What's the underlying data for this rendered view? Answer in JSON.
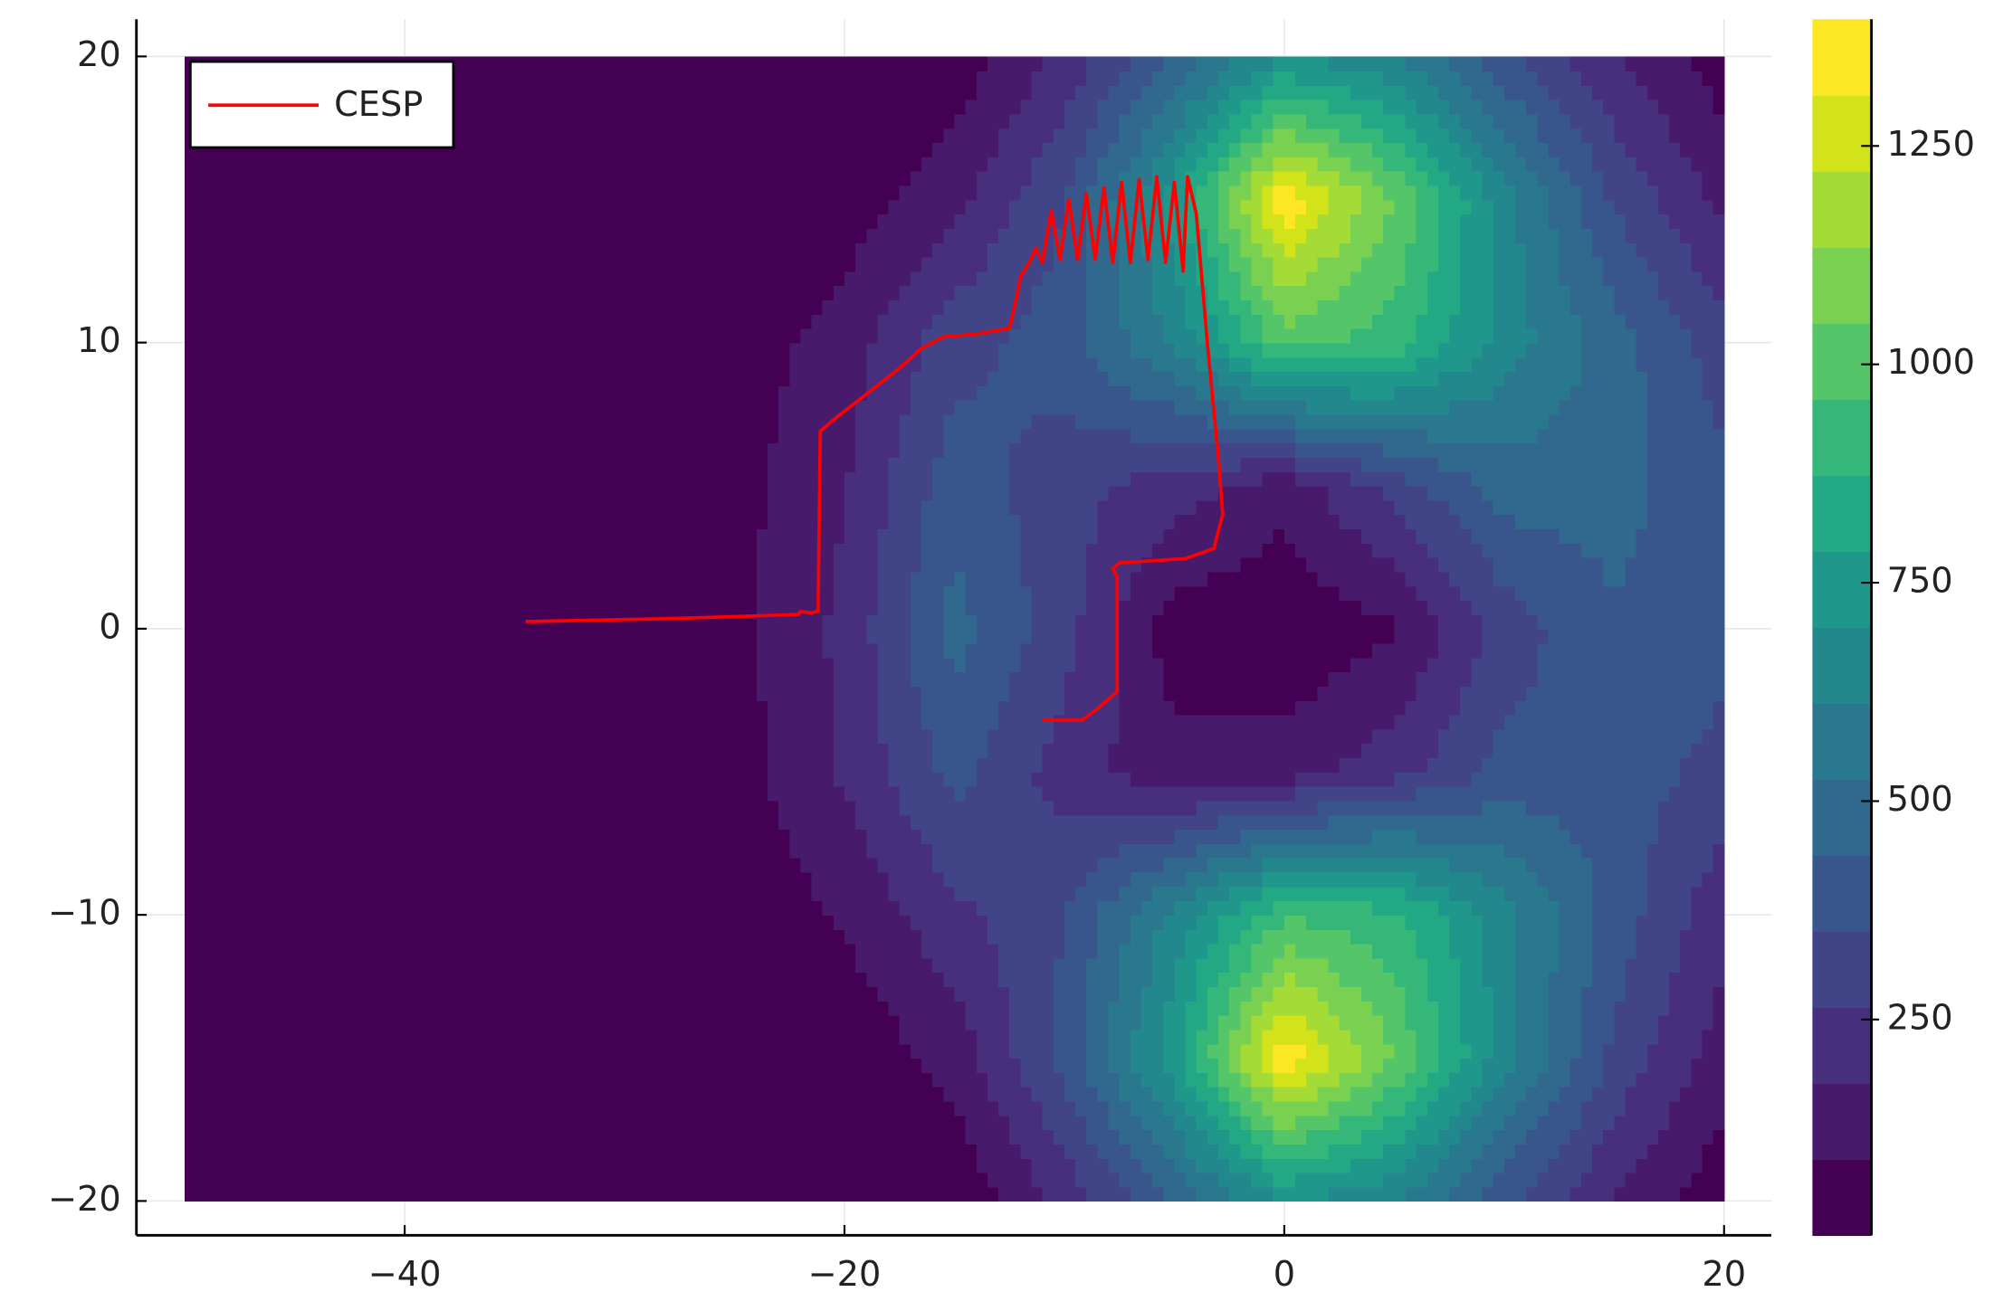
{
  "chart_data": {
    "type": "contour",
    "xlim": [
      -52.2,
      22.15
    ],
    "ylim": [
      -21.2,
      21.3
    ],
    "xticks": [
      {
        "value": -40,
        "label": "−40"
      },
      {
        "value": -20,
        "label": "−20"
      },
      0,
      20
    ],
    "yticks": [
      {
        "value": -20,
        "label": "−20"
      },
      {
        "value": -10,
        "label": "−10"
      },
      0,
      10,
      20
    ],
    "grid": true,
    "legend": "top-left",
    "contour": {
      "x": [
        -50,
        -45,
        -40,
        -35,
        -30,
        -25,
        -20,
        -15,
        -10,
        -5,
        0,
        5,
        10,
        15,
        20
      ],
      "y": [
        -20,
        -15,
        -10,
        -5,
        0,
        5,
        10,
        15,
        20
      ],
      "z": [
        [
          5,
          5,
          5,
          5,
          5,
          10,
          15,
          20,
          200,
          450,
          700,
          620,
          380,
          170,
          30
        ],
        [
          5,
          5,
          5,
          5,
          8,
          12,
          20,
          120,
          380,
          760,
          1380,
          1050,
          650,
          330,
          130
        ],
        [
          5,
          5,
          5,
          5,
          10,
          20,
          100,
          240,
          350,
          640,
          950,
          900,
          650,
          400,
          200
        ],
        [
          5,
          5,
          5,
          8,
          15,
          50,
          190,
          380,
          220,
          120,
          130,
          230,
          380,
          400,
          320
        ],
        [
          5,
          5,
          5,
          8,
          15,
          60,
          200,
          470,
          300,
          40,
          20,
          80,
          300,
          430,
          380
        ],
        [
          5,
          5,
          5,
          8,
          15,
          60,
          170,
          400,
          300,
          220,
          120,
          300,
          480,
          470,
          380
        ],
        [
          5,
          5,
          5,
          5,
          10,
          40,
          130,
          320,
          400,
          620,
          1000,
          920,
          660,
          480,
          300
        ],
        [
          5,
          5,
          5,
          5,
          8,
          15,
          40,
          150,
          350,
          750,
          1380,
          1050,
          650,
          340,
          150
        ],
        [
          5,
          5,
          5,
          5,
          5,
          10,
          15,
          30,
          200,
          450,
          700,
          620,
          380,
          180,
          40
        ]
      ]
    },
    "colorbar": {
      "lim": [
        3,
        1395
      ],
      "ticks": [
        250,
        500,
        750,
        1000,
        1250
      ],
      "colors": [
        "#440154",
        "#481a6c",
        "#472f7d",
        "#414487",
        "#39568c",
        "#31688e",
        "#2a788e",
        "#23888e",
        "#1f988b",
        "#22a884",
        "#35b779",
        "#54c568",
        "#7ad151",
        "#a5db36",
        "#d2e21b",
        "#fde725"
      ]
    },
    "series": [
      {
        "name": "CESP",
        "color": "#ff0000",
        "x": [
          -34.5,
          -28,
          -24,
          -22.1,
          -22,
          -21.5,
          -21.3,
          -21.2,
          -21.1,
          -20.5,
          -19,
          -17.5,
          -16.5,
          -15.5,
          -14,
          -12.5,
          -12.2,
          -12,
          -11.6,
          -11.3,
          -11,
          -10.6,
          -10.2,
          -9.8,
          -9.4,
          -9,
          -8.6,
          -8.2,
          -7.8,
          -7.4,
          -7,
          -6.6,
          -6.2,
          -5.8,
          -5.4,
          -5,
          -4.6,
          -4.4,
          -4,
          -3.5,
          -3,
          -2.8,
          -3.2,
          -4.5,
          -7.5,
          -7.8,
          -7.6,
          -7.6,
          -8.5,
          -9.2,
          -11
        ],
        "y": [
          0.25,
          0.35,
          0.45,
          0.5,
          0.6,
          0.55,
          0.6,
          0.6,
          6.9,
          7.3,
          8.2,
          9.1,
          9.8,
          10.2,
          10.3,
          10.5,
          11.5,
          12.3,
          12.8,
          13.3,
          12.8,
          14.6,
          12.9,
          15,
          12.9,
          15.2,
          12.9,
          15.4,
          12.8,
          15.6,
          12.8,
          15.7,
          12.9,
          15.8,
          12.8,
          15.6,
          12.5,
          15.8,
          14.5,
          10,
          6,
          4,
          2.8,
          2.45,
          2.3,
          2.1,
          1.8,
          -2.2,
          -2.8,
          -3.2,
          -3.2
        ]
      }
    ]
  }
}
